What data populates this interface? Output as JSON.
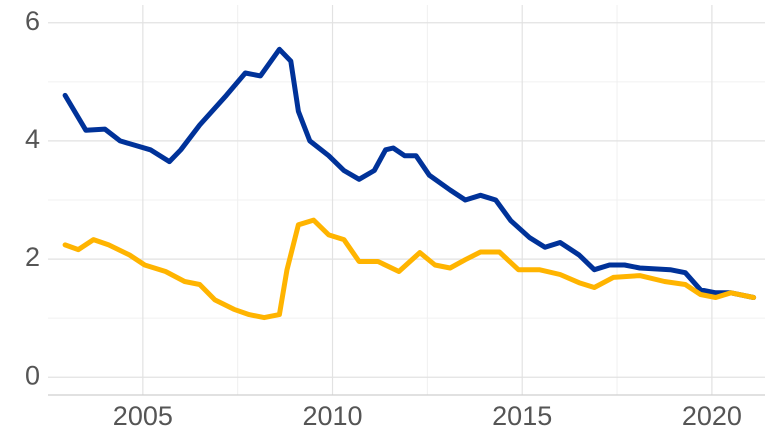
{
  "chart_data": {
    "type": "line",
    "xlim": [
      2002.5,
      2021.4
    ],
    "ylim": [
      -0.3,
      6.3
    ],
    "xticks": [
      2005,
      2010,
      2015,
      2020
    ],
    "yticks": [
      0,
      2,
      4,
      6
    ],
    "xminorticks": [
      2007.5,
      2012.5,
      2017.5
    ],
    "yminorticks": [
      1,
      3,
      5
    ],
    "grid": true,
    "series": [
      {
        "color": "#003299",
        "x": [
          2002.95,
          2003.5,
          2004.0,
          2004.4,
          2005.2,
          2005.7,
          2006.0,
          2006.5,
          2007.2,
          2007.7,
          2008.1,
          2008.6,
          2008.9,
          2009.1,
          2009.4,
          2009.9,
          2010.3,
          2010.7,
          2011.1,
          2011.4,
          2011.6,
          2011.9,
          2012.2,
          2012.55,
          2013.1,
          2013.5,
          2013.9,
          2014.3,
          2014.7,
          2015.2,
          2015.6,
          2016.0,
          2016.5,
          2016.9,
          2017.3,
          2017.7,
          2018.1,
          2018.9,
          2019.3,
          2019.7,
          2020.1,
          2020.5,
          2021.1
        ],
        "values": [
          4.77,
          4.18,
          4.2,
          4.0,
          3.85,
          3.65,
          3.85,
          4.27,
          4.77,
          5.15,
          5.1,
          5.55,
          5.35,
          4.5,
          4.0,
          3.75,
          3.5,
          3.35,
          3.5,
          3.85,
          3.88,
          3.75,
          3.75,
          3.42,
          3.17,
          3.0,
          3.08,
          3.0,
          2.65,
          2.36,
          2.2,
          2.28,
          2.07,
          1.82,
          1.9,
          1.9,
          1.85,
          1.82,
          1.77,
          1.48,
          1.43,
          1.43,
          1.35
        ]
      },
      {
        "color": "#FFB400",
        "x": [
          2002.95,
          2003.3,
          2003.7,
          2004.1,
          2004.65,
          2005.05,
          2005.6,
          2006.1,
          2006.5,
          2006.9,
          2007.4,
          2007.8,
          2008.2,
          2008.6,
          2008.8,
          2009.1,
          2009.5,
          2009.9,
          2010.3,
          2010.7,
          2011.2,
          2011.75,
          2012.3,
          2012.7,
          2013.1,
          2013.5,
          2013.9,
          2014.4,
          2014.9,
          2015.45,
          2016.0,
          2016.5,
          2016.9,
          2017.4,
          2018.1,
          2018.75,
          2019.3,
          2019.7,
          2020.1,
          2020.5,
          2021.1
        ],
        "values": [
          2.24,
          2.16,
          2.33,
          2.24,
          2.07,
          1.9,
          1.79,
          1.62,
          1.57,
          1.31,
          1.15,
          1.06,
          1.01,
          1.06,
          1.82,
          2.58,
          2.66,
          2.41,
          2.33,
          1.96,
          1.96,
          1.79,
          2.11,
          1.9,
          1.85,
          1.99,
          2.12,
          2.12,
          1.82,
          1.82,
          1.74,
          1.6,
          1.52,
          1.69,
          1.72,
          1.62,
          1.57,
          1.4,
          1.35,
          1.43,
          1.35
        ]
      }
    ]
  }
}
